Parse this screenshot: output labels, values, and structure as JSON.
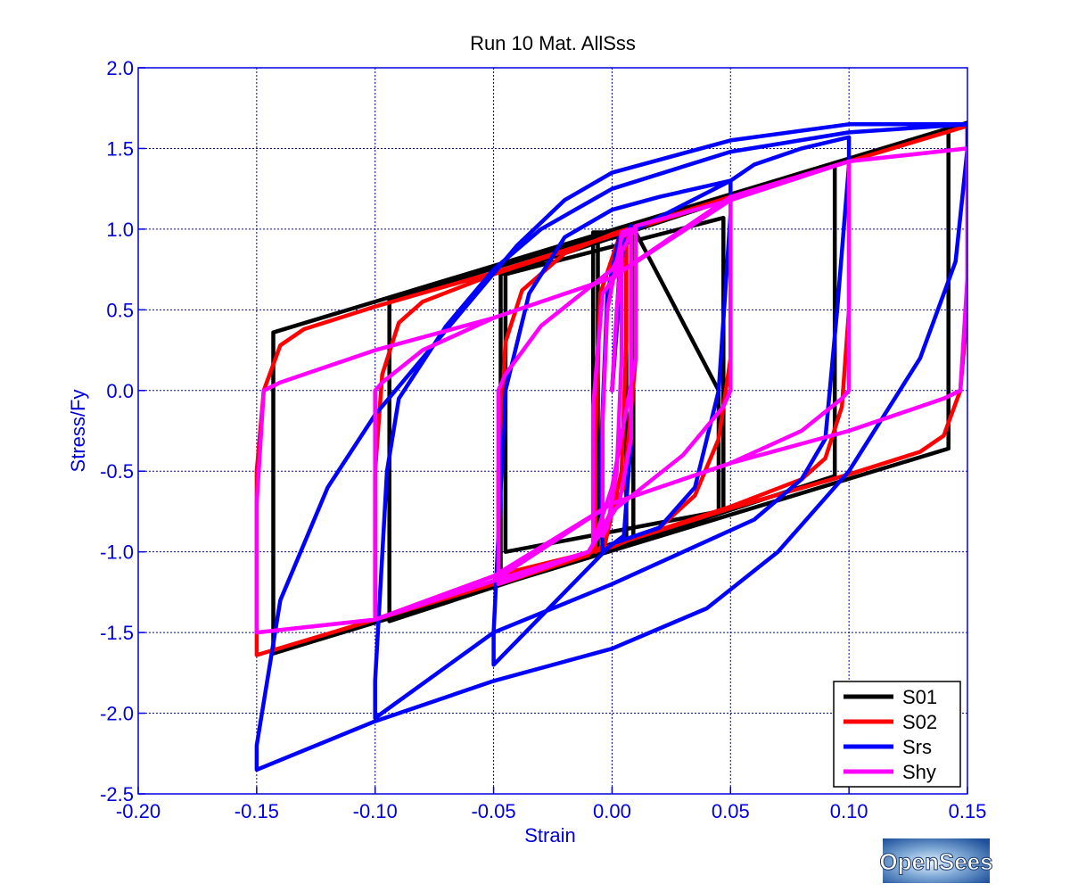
{
  "chart_data": {
    "type": "line",
    "title": "Run 10    Mat. AllSss",
    "xlabel": "Strain",
    "ylabel": "Stress/Fy",
    "xlim": [
      -0.2,
      0.15
    ],
    "ylim": [
      -2.5,
      2.0
    ],
    "x_ticks": [
      "-0.20",
      "-0.15",
      "-0.10",
      "-0.05",
      "0.00",
      "0.05",
      "0.10",
      "0.15"
    ],
    "y_ticks": [
      "2.0",
      "1.5",
      "1.0",
      "0.5",
      "0.0",
      "-0.5",
      "-1.0",
      "-1.5",
      "-2.0",
      "-2.5"
    ],
    "grid": true,
    "legend_position": "bottom-right",
    "series": [
      {
        "name": "S01",
        "color": "#000000",
        "points": [
          [
            0,
            0
          ],
          [
            0.004,
            0.96
          ],
          [
            0.006,
            0.97
          ],
          [
            0.006,
            -0.92
          ],
          [
            -0.006,
            -0.98
          ],
          [
            -0.006,
            0.93
          ],
          [
            0.009,
            0.97
          ],
          [
            0.009,
            -0.91
          ],
          [
            -0.008,
            -1.0
          ],
          [
            -0.008,
            0.98
          ],
          [
            0.01,
            0.98
          ],
          [
            0.045,
            0.0
          ],
          [
            0.045,
            -0.75
          ],
          [
            -0.045,
            -1.0
          ],
          [
            -0.045,
            0.72
          ],
          [
            0.047,
            1.07
          ],
          [
            0.047,
            -0.75
          ],
          [
            -0.047,
            -1.2
          ],
          [
            -0.047,
            0.72
          ],
          [
            0.094,
            1.4
          ],
          [
            0.094,
            -0.53
          ],
          [
            -0.094,
            -1.43
          ],
          [
            -0.094,
            0.56
          ],
          [
            0.142,
            1.62
          ],
          [
            0.142,
            -0.36
          ],
          [
            -0.143,
            -1.63
          ],
          [
            -0.143,
            0.36
          ],
          [
            0.15,
            1.66
          ]
        ]
      },
      {
        "name": "S02",
        "color": "#ff0000",
        "points": [
          [
            0,
            0
          ],
          [
            0.003,
            0.6
          ],
          [
            0.006,
            0.95
          ],
          [
            0.006,
            0.3
          ],
          [
            0.004,
            -0.5
          ],
          [
            -0.003,
            -0.95
          ],
          [
            -0.007,
            -1.0
          ],
          [
            -0.007,
            -0.3
          ],
          [
            -0.005,
            0.6
          ],
          [
            0.003,
            0.95
          ],
          [
            0.01,
            1.0
          ],
          [
            0.01,
            0.2
          ],
          [
            0.005,
            -0.6
          ],
          [
            -0.01,
            -1.02
          ],
          [
            -0.048,
            -1.2
          ],
          [
            -0.048,
            -0.5
          ],
          [
            -0.045,
            0.3
          ],
          [
            -0.038,
            0.62
          ],
          [
            -0.02,
            0.85
          ],
          [
            0.0,
            0.97
          ],
          [
            0.05,
            1.2
          ],
          [
            0.05,
            0.2
          ],
          [
            0.045,
            -0.3
          ],
          [
            0.035,
            -0.65
          ],
          [
            0.02,
            -0.85
          ],
          [
            0.0,
            -0.97
          ],
          [
            -0.05,
            -1.15
          ],
          [
            -0.1,
            -1.42
          ],
          [
            -0.1,
            -0.5
          ],
          [
            -0.097,
            0.1
          ],
          [
            -0.09,
            0.42
          ],
          [
            -0.08,
            0.55
          ],
          [
            -0.05,
            0.72
          ],
          [
            0.0,
            0.96
          ],
          [
            0.05,
            1.2
          ],
          [
            0.1,
            1.42
          ],
          [
            0.1,
            0.5
          ],
          [
            0.097,
            -0.1
          ],
          [
            0.09,
            -0.42
          ],
          [
            0.08,
            -0.55
          ],
          [
            0.05,
            -0.72
          ],
          [
            0.0,
            -0.96
          ],
          [
            -0.05,
            -1.2
          ],
          [
            -0.1,
            -1.42
          ],
          [
            -0.15,
            -1.64
          ],
          [
            -0.15,
            -0.5
          ],
          [
            -0.147,
            0.0
          ],
          [
            -0.14,
            0.28
          ],
          [
            -0.13,
            0.38
          ],
          [
            -0.1,
            0.52
          ],
          [
            -0.05,
            0.73
          ],
          [
            0.0,
            0.96
          ],
          [
            0.05,
            1.19
          ],
          [
            0.1,
            1.42
          ],
          [
            0.15,
            1.64
          ],
          [
            0.15,
            0.5
          ],
          [
            0.147,
            0.0
          ],
          [
            0.14,
            -0.28
          ],
          [
            0.13,
            -0.38
          ],
          [
            0.1,
            -0.52
          ],
          [
            0.05,
            -0.73
          ],
          [
            0.0,
            -0.96
          ],
          [
            -0.05,
            -1.2
          ],
          [
            -0.1,
            -1.42
          ],
          [
            -0.15,
            -1.64
          ]
        ]
      },
      {
        "name": "Srs",
        "color": "#0000ff",
        "points": [
          [
            0,
            0
          ],
          [
            0.005,
            0.95
          ],
          [
            0.008,
            1.02
          ],
          [
            0.008,
            -0.3
          ],
          [
            0.005,
            -0.9
          ],
          [
            -0.004,
            -1.0
          ],
          [
            -0.005,
            -0.5
          ],
          [
            -0.002,
            0.6
          ],
          [
            0.003,
            0.95
          ],
          [
            0.01,
            1.0
          ],
          [
            0.05,
            1.3
          ],
          [
            0.05,
            1.1
          ],
          [
            0.045,
            0.0
          ],
          [
            0.035,
            -0.6
          ],
          [
            0.02,
            -0.85
          ],
          [
            0.0,
            -0.95
          ],
          [
            -0.05,
            -1.7
          ],
          [
            -0.05,
            -1.5
          ],
          [
            -0.045,
            0.0
          ],
          [
            -0.035,
            0.6
          ],
          [
            -0.02,
            0.95
          ],
          [
            0.0,
            1.12
          ],
          [
            0.02,
            1.2
          ],
          [
            0.05,
            1.3
          ],
          [
            0.06,
            1.4
          ],
          [
            0.08,
            1.5
          ],
          [
            0.1,
            1.57
          ],
          [
            0.1,
            1.4
          ],
          [
            0.095,
            0.5
          ],
          [
            0.09,
            -0.3
          ],
          [
            0.08,
            -0.55
          ],
          [
            0.06,
            -0.8
          ],
          [
            0.03,
            -1.0
          ],
          [
            0.0,
            -1.2
          ],
          [
            -0.05,
            -1.5
          ],
          [
            -0.1,
            -2.03
          ],
          [
            -0.1,
            -1.8
          ],
          [
            -0.095,
            -0.5
          ],
          [
            -0.09,
            -0.05
          ],
          [
            -0.07,
            0.4
          ],
          [
            -0.05,
            0.75
          ],
          [
            -0.03,
            1.0
          ],
          [
            0.0,
            1.25
          ],
          [
            0.05,
            1.48
          ],
          [
            0.1,
            1.6
          ],
          [
            0.15,
            1.65
          ],
          [
            0.15,
            1.5
          ],
          [
            0.145,
            0.8
          ],
          [
            0.13,
            0.2
          ],
          [
            0.1,
            -0.5
          ],
          [
            0.07,
            -1.0
          ],
          [
            0.04,
            -1.35
          ],
          [
            0.0,
            -1.6
          ],
          [
            -0.05,
            -1.8
          ],
          [
            -0.1,
            -2.05
          ],
          [
            -0.15,
            -2.35
          ],
          [
            -0.15,
            -2.2
          ],
          [
            -0.14,
            -1.3
          ],
          [
            -0.12,
            -0.6
          ],
          [
            -0.1,
            -0.15
          ],
          [
            -0.08,
            0.2
          ],
          [
            -0.06,
            0.55
          ],
          [
            -0.04,
            0.9
          ],
          [
            -0.02,
            1.18
          ],
          [
            0.0,
            1.35
          ],
          [
            0.05,
            1.55
          ],
          [
            0.1,
            1.65
          ],
          [
            0.15,
            1.65
          ]
        ]
      },
      {
        "name": "Shy",
        "color": "#ff00ff",
        "points": [
          [
            0,
            0
          ],
          [
            0.002,
            0.5
          ],
          [
            0.004,
            0.85
          ],
          [
            0.004,
            0.2
          ],
          [
            0.002,
            -0.5
          ],
          [
            -0.002,
            -0.85
          ],
          [
            -0.004,
            -0.9
          ],
          [
            -0.004,
            -0.2
          ],
          [
            -0.002,
            0.5
          ],
          [
            0.004,
            0.95
          ],
          [
            0.01,
            1.0
          ],
          [
            0.01,
            0.2
          ],
          [
            0.0,
            -0.6
          ],
          [
            -0.008,
            -0.95
          ],
          [
            -0.008,
            -0.1
          ],
          [
            -0.004,
            0.6
          ],
          [
            0.002,
            0.72
          ],
          [
            0.004,
            0.98
          ],
          [
            0.008,
            1.0
          ],
          [
            0.008,
            -0.3
          ],
          [
            0.003,
            -0.7
          ],
          [
            -0.01,
            -1.0
          ],
          [
            -0.048,
            -1.2
          ],
          [
            -0.048,
            0.0
          ],
          [
            -0.045,
            0.1
          ],
          [
            -0.03,
            0.4
          ],
          [
            0.0,
            0.75
          ],
          [
            0.01,
            1.02
          ],
          [
            0.05,
            1.18
          ],
          [
            0.05,
            0.0
          ],
          [
            0.047,
            -0.1
          ],
          [
            0.03,
            -0.4
          ],
          [
            0.0,
            -0.75
          ],
          [
            -0.01,
            -1.0
          ],
          [
            -0.05,
            -1.18
          ],
          [
            -0.1,
            -1.42
          ],
          [
            -0.1,
            0.0
          ],
          [
            -0.097,
            0.05
          ],
          [
            -0.08,
            0.25
          ],
          [
            -0.05,
            0.45
          ],
          [
            0.0,
            0.7
          ],
          [
            0.05,
            1.18
          ],
          [
            0.1,
            1.42
          ],
          [
            0.1,
            0.0
          ],
          [
            0.097,
            -0.05
          ],
          [
            0.08,
            -0.25
          ],
          [
            0.05,
            -0.45
          ],
          [
            0.0,
            -0.7
          ],
          [
            -0.05,
            -1.18
          ],
          [
            -0.1,
            -1.42
          ],
          [
            -0.15,
            -1.5
          ],
          [
            -0.15,
            -0.7
          ],
          [
            -0.147,
            0.0
          ],
          [
            -0.14,
            0.05
          ],
          [
            -0.1,
            0.25
          ],
          [
            -0.05,
            0.45
          ],
          [
            0.0,
            0.7
          ],
          [
            0.05,
            1.2
          ],
          [
            0.1,
            1.42
          ],
          [
            0.15,
            1.5
          ],
          [
            0.15,
            0.7
          ],
          [
            0.147,
            0.0
          ],
          [
            0.14,
            -0.05
          ],
          [
            0.1,
            -0.25
          ],
          [
            0.05,
            -0.45
          ],
          [
            0.0,
            -0.7
          ],
          [
            -0.05,
            -1.15
          ],
          [
            -0.1,
            -1.42
          ],
          [
            -0.15,
            -1.5
          ]
        ]
      }
    ]
  },
  "logo": {
    "text": "OpenSees"
  }
}
